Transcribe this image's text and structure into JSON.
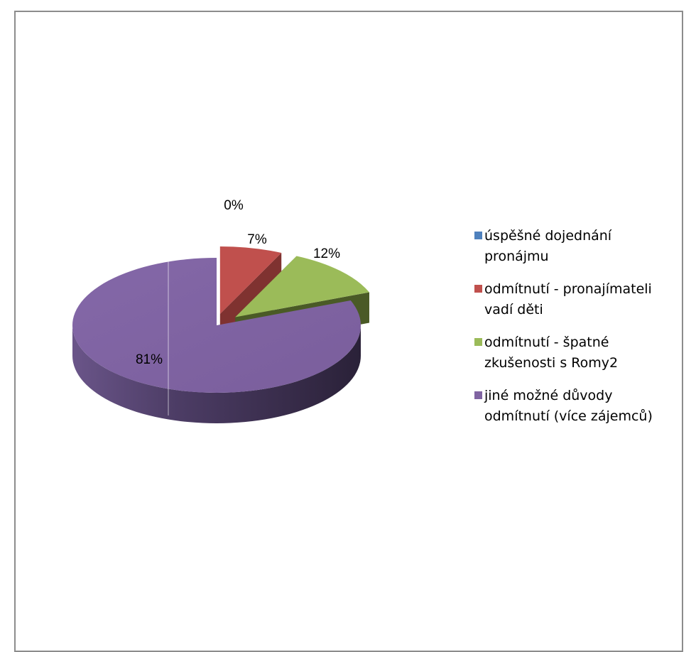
{
  "chart_data": {
    "type": "pie",
    "style": "3d-exploded",
    "categories": [
      "úspěšné dojednání pronájmu",
      "odmítnutí - pronajímateli vadí děti",
      "odmítnutí - špatné zkušenosti s Romy2",
      "jiné možné důvody odmítnutí (více zájemců)"
    ],
    "values": [
      0,
      7,
      12,
      81
    ],
    "data_labels": [
      "0%",
      "7%",
      "12%",
      "81%"
    ],
    "colors": [
      "#4f81bd",
      "#c0504d",
      "#9bbb59",
      "#8064a2"
    ],
    "legend_position": "right",
    "legend_lines": [
      [
        "úspěšné dojednání",
        "pronájmu"
      ],
      [
        "odmítnutí - pronajímateli",
        "vadí děti"
      ],
      [
        "odmítnutí - špatné",
        "zkušenosti s Romy2"
      ],
      [
        "jiné možné důvody",
        "odmítnutí (více zájemců)"
      ]
    ]
  }
}
